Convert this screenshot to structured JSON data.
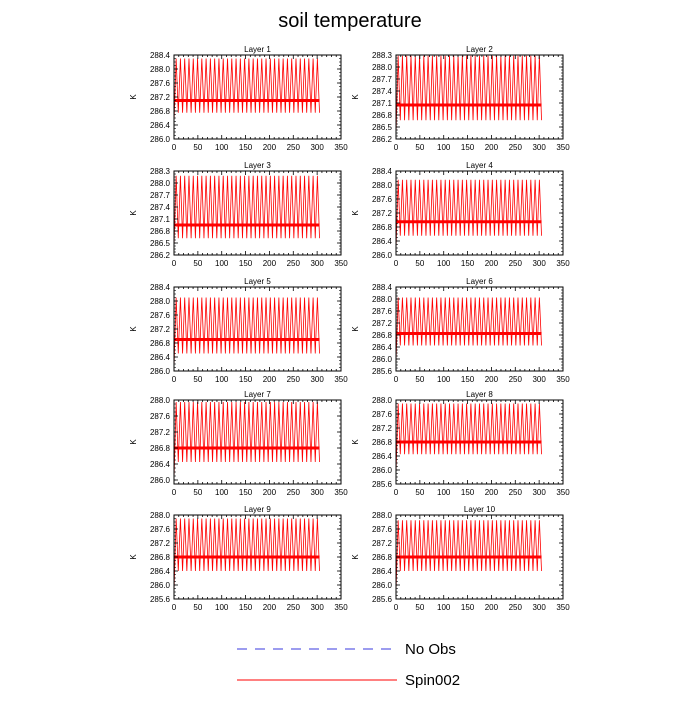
{
  "figure_title": "soil temperature",
  "colors": {
    "no_obs": "#3a3adf",
    "spin": "#ff0000",
    "axis": "#000000",
    "background": "#ffffff"
  },
  "legend": [
    {
      "label": "No Obs",
      "style": "dashed",
      "color": "#3a3adf"
    },
    {
      "label": "Spin002",
      "style": "solid",
      "color": "#ff0000"
    }
  ],
  "chart_data": [
    {
      "type": "line",
      "title": "Layer 1",
      "ylabel": "K",
      "xlim": [
        0,
        350
      ],
      "xticks": [
        0,
        50,
        100,
        150,
        200,
        250,
        300,
        350
      ],
      "ylim": [
        286.0,
        288.4
      ],
      "yticks": [
        "286.0",
        "286.4",
        "286.8",
        "287.2",
        "287.6",
        "288.0",
        "288.4"
      ],
      "series": [
        {
          "name": "No Obs",
          "values": []
        },
        {
          "name": "Spin002",
          "x_range": [
            0,
            305
          ],
          "mean": 287.1,
          "max": 288.3,
          "min": 286.75,
          "start_min": 286.45,
          "cycles": 34
        }
      ]
    },
    {
      "type": "line",
      "title": "Layer 2",
      "ylabel": "K",
      "xlim": [
        0,
        350
      ],
      "xticks": [
        0,
        50,
        100,
        150,
        200,
        250,
        300,
        350
      ],
      "ylim": [
        286.2,
        288.3
      ],
      "yticks": [
        "286.2",
        "286.5",
        "286.8",
        "287.1",
        "287.4",
        "287.7",
        "288.0",
        "288.3"
      ],
      "series": [
        {
          "name": "No Obs",
          "values": []
        },
        {
          "name": "Spin002",
          "x_range": [
            0,
            305
          ],
          "mean": 287.05,
          "max": 288.28,
          "min": 286.67,
          "start_min": 286.3,
          "cycles": 34
        }
      ]
    },
    {
      "type": "line",
      "title": "Layer 3",
      "ylabel": "K",
      "xlim": [
        0,
        350
      ],
      "xticks": [
        0,
        50,
        100,
        150,
        200,
        250,
        300,
        350
      ],
      "ylim": [
        286.2,
        288.3
      ],
      "yticks": [
        "286.2",
        "286.5",
        "286.8",
        "287.1",
        "287.4",
        "287.7",
        "288.0",
        "288.3"
      ],
      "series": [
        {
          "name": "No Obs",
          "values": []
        },
        {
          "name": "Spin002",
          "x_range": [
            0,
            305
          ],
          "mean": 286.95,
          "max": 288.18,
          "min": 286.62,
          "start_min": 286.4,
          "cycles": 34
        }
      ]
    },
    {
      "type": "line",
      "title": "Layer 4",
      "ylabel": "K",
      "xlim": [
        0,
        350
      ],
      "xticks": [
        0,
        50,
        100,
        150,
        200,
        250,
        300,
        350
      ],
      "ylim": [
        286.0,
        288.4
      ],
      "yticks": [
        "286.0",
        "286.4",
        "286.8",
        "287.2",
        "287.6",
        "288.0",
        "288.4"
      ],
      "series": [
        {
          "name": "No Obs",
          "values": []
        },
        {
          "name": "Spin002",
          "x_range": [
            0,
            305
          ],
          "mean": 286.95,
          "max": 288.15,
          "min": 286.55,
          "start_min": 286.15,
          "cycles": 34
        }
      ]
    },
    {
      "type": "line",
      "title": "Layer 5",
      "ylabel": "K",
      "xlim": [
        0,
        350
      ],
      "xticks": [
        0,
        50,
        100,
        150,
        200,
        250,
        300,
        350
      ],
      "ylim": [
        286.0,
        288.4
      ],
      "yticks": [
        "286.0",
        "286.4",
        "286.8",
        "287.2",
        "287.6",
        "288.0",
        "288.4"
      ],
      "series": [
        {
          "name": "No Obs",
          "values": []
        },
        {
          "name": "Spin002",
          "x_range": [
            0,
            305
          ],
          "mean": 286.9,
          "max": 288.1,
          "min": 286.5,
          "start_min": 286.1,
          "cycles": 34
        }
      ]
    },
    {
      "type": "line",
      "title": "Layer 6",
      "ylabel": "K",
      "xlim": [
        0,
        350
      ],
      "xticks": [
        0,
        50,
        100,
        150,
        200,
        250,
        300,
        350
      ],
      "ylim": [
        285.6,
        288.4
      ],
      "yticks": [
        "285.6",
        "286.0",
        "286.4",
        "286.8",
        "287.2",
        "287.6",
        "288.0",
        "288.4"
      ],
      "series": [
        {
          "name": "No Obs",
          "values": []
        },
        {
          "name": "Spin002",
          "x_range": [
            0,
            305
          ],
          "mean": 286.85,
          "max": 288.05,
          "min": 286.45,
          "start_min": 285.9,
          "cycles": 34
        }
      ]
    },
    {
      "type": "line",
      "title": "Layer 7",
      "ylabel": "K",
      "xlim": [
        0,
        350
      ],
      "xticks": [
        0,
        50,
        100,
        150,
        200,
        250,
        300,
        350
      ],
      "ylim": [
        285.9,
        288.0
      ],
      "yticks": [
        "286.0",
        "286.4",
        "286.8",
        "287.2",
        "287.6",
        "288.0"
      ],
      "series": [
        {
          "name": "No Obs",
          "values": []
        },
        {
          "name": "Spin002",
          "x_range": [
            0,
            305
          ],
          "mean": 286.8,
          "max": 287.95,
          "min": 286.45,
          "start_min": 286.0,
          "cycles": 34
        }
      ]
    },
    {
      "type": "line",
      "title": "Layer 8",
      "ylabel": "K",
      "xlim": [
        0,
        350
      ],
      "xticks": [
        0,
        50,
        100,
        150,
        200,
        250,
        300,
        350
      ],
      "ylim": [
        285.6,
        288.0
      ],
      "yticks": [
        "285.6",
        "286.0",
        "286.4",
        "286.8",
        "287.2",
        "287.6",
        "288.0"
      ],
      "series": [
        {
          "name": "No Obs",
          "values": []
        },
        {
          "name": "Spin002",
          "x_range": [
            0,
            305
          ],
          "mean": 286.8,
          "max": 287.9,
          "min": 286.45,
          "start_min": 285.9,
          "cycles": 34
        }
      ]
    },
    {
      "type": "line",
      "title": "Layer 9",
      "ylabel": "K",
      "xlim": [
        0,
        350
      ],
      "xticks": [
        0,
        50,
        100,
        150,
        200,
        250,
        300,
        350
      ],
      "ylim": [
        285.6,
        288.0
      ],
      "yticks": [
        "285.6",
        "286.0",
        "286.4",
        "286.8",
        "287.2",
        "287.6",
        "288.0"
      ],
      "series": [
        {
          "name": "No Obs",
          "values": []
        },
        {
          "name": "Spin002",
          "x_range": [
            0,
            305
          ],
          "mean": 286.8,
          "max": 287.9,
          "min": 286.4,
          "start_min": 285.8,
          "cycles": 34
        }
      ]
    },
    {
      "type": "line",
      "title": "Layer 10",
      "ylabel": "K",
      "xlim": [
        0,
        350
      ],
      "xticks": [
        0,
        50,
        100,
        150,
        200,
        250,
        300,
        350
      ],
      "ylim": [
        285.6,
        288.0
      ],
      "yticks": [
        "285.6",
        "286.0",
        "286.4",
        "286.8",
        "287.2",
        "287.6",
        "288.0"
      ],
      "series": [
        {
          "name": "No Obs",
          "values": []
        },
        {
          "name": "Spin002",
          "x_range": [
            0,
            305
          ],
          "mean": 286.8,
          "max": 287.85,
          "min": 286.4,
          "start_min": 285.8,
          "cycles": 34
        }
      ]
    }
  ]
}
